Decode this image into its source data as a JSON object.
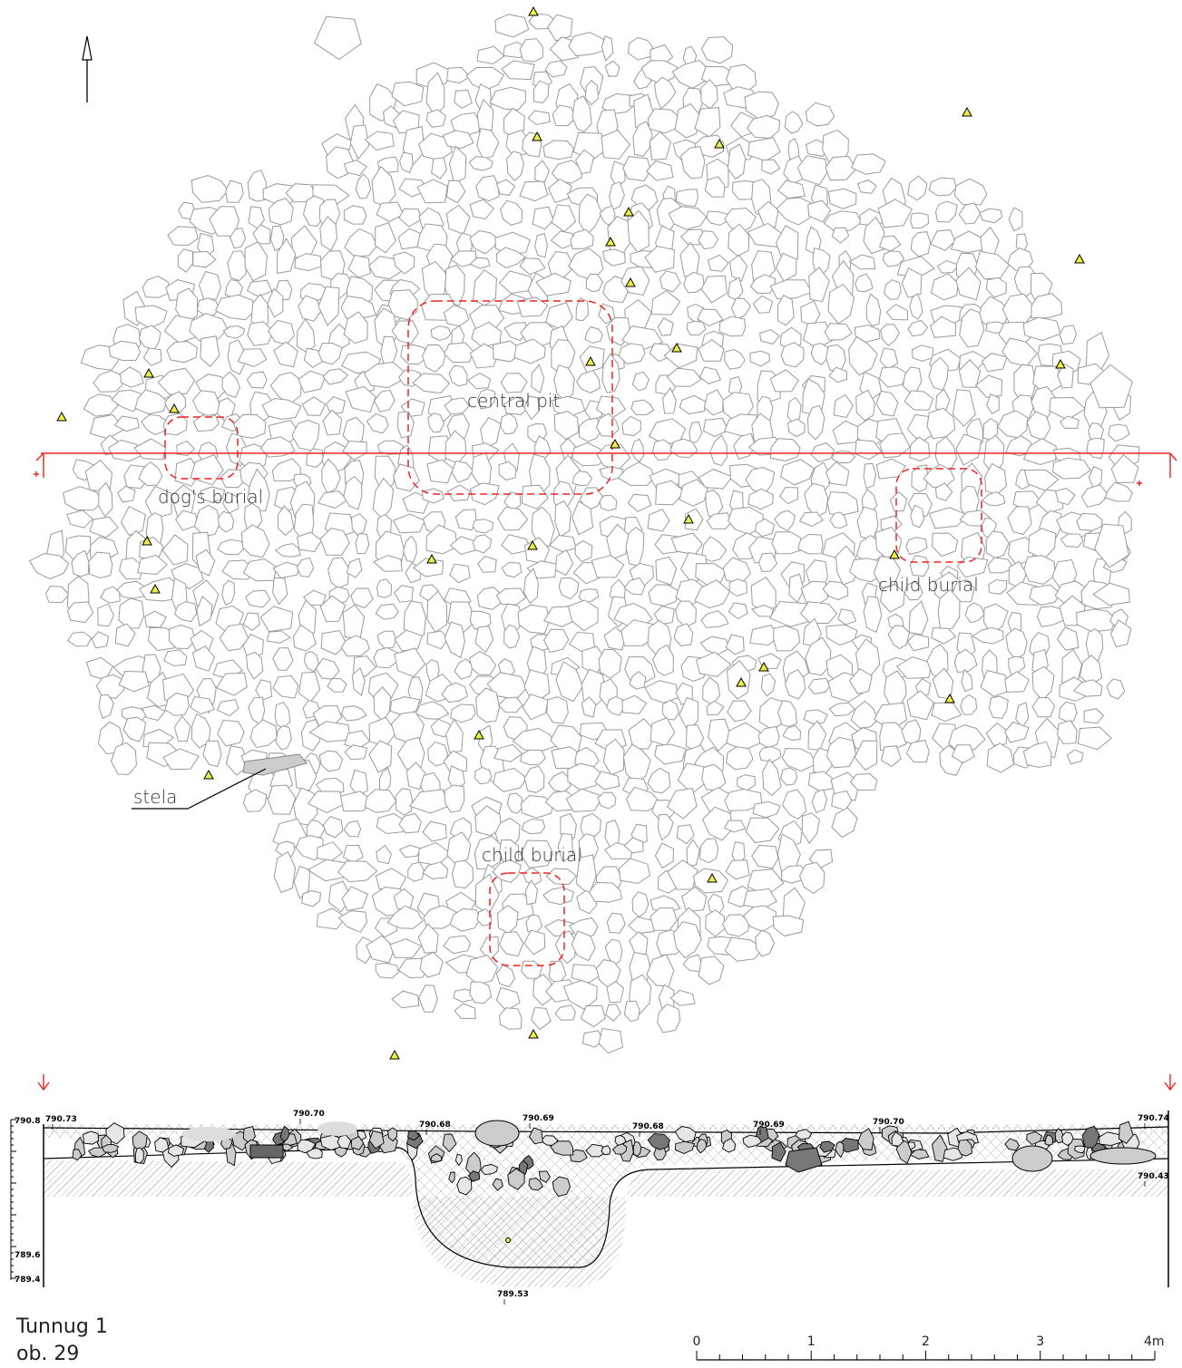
{
  "plan": {
    "labels": {
      "central_pit": "central pit",
      "dogs_burial": "dog's burial",
      "child_burial_east": "child burial",
      "child_burial_south": "child burial",
      "stela": "stela"
    }
  },
  "section": {
    "elevations": [
      "790.73",
      "790.70",
      "790.68",
      "790.69",
      "790.68",
      "790.69",
      "790.70",
      "790.74",
      "790.43",
      "789.53"
    ],
    "vertical_scale": [
      "790.8",
      "789.6",
      "789.4"
    ]
  },
  "scale_bar": {
    "labels": [
      "0",
      "1",
      "2",
      "3",
      "4m"
    ]
  },
  "caption": {
    "site": "Tunnug 1",
    "object": "ob. 29"
  }
}
